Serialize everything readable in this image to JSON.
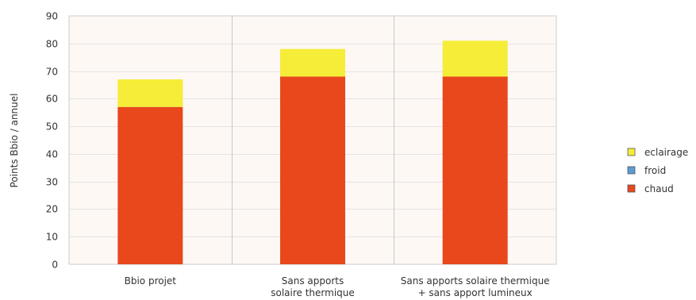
{
  "chart_data": {
    "type": "bar",
    "stacked": true,
    "title": "",
    "xlabel": "",
    "ylabel": "Points Bbio / annuel",
    "ylim": [
      0,
      90
    ],
    "yticks": [
      0,
      10,
      20,
      30,
      40,
      50,
      60,
      70,
      80,
      90
    ],
    "grid": true,
    "legend_position": "right",
    "categories": [
      [
        "Bbio projet"
      ],
      [
        "Sans apports",
        "solaire thermique"
      ],
      [
        "Sans apports solaire thermique",
        "+ sans apport lumineux"
      ]
    ],
    "series": [
      {
        "name": "chaud",
        "color": "#e8481c",
        "values": [
          57,
          68,
          68
        ]
      },
      {
        "name": "froid",
        "color": "#5b9bd5",
        "values": [
          0,
          0,
          0
        ]
      },
      {
        "name": "eclairage",
        "color": "#f5ed38",
        "values": [
          10,
          10,
          13
        ]
      }
    ],
    "legend_order": [
      "eclairage",
      "froid",
      "chaud"
    ],
    "colors": {
      "plot_background": "#fdf8f4",
      "grid": "#e4e4e4",
      "axis": "#cccccc",
      "separator": "#c8c8c8"
    }
  }
}
